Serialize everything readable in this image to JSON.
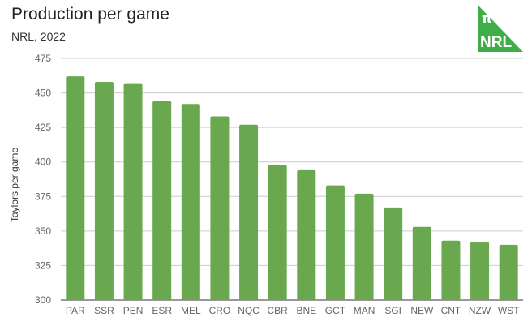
{
  "header": {
    "title": "Production per game",
    "subtitle": "NRL, 2022"
  },
  "logo": {
    "symbol": "π",
    "text": "NRL",
    "color": "#3fae49",
    "text_color": "#ffffff"
  },
  "colors": {
    "bar": "#6aa84f",
    "gridline": "#cccccc",
    "baseline": "#333333"
  },
  "chart_data": {
    "type": "bar",
    "title": "Production per game",
    "subtitle": "NRL, 2022",
    "xlabel": "",
    "ylabel": "Taylors per game",
    "ylim": [
      300,
      475
    ],
    "yticks": [
      300,
      325,
      350,
      375,
      400,
      425,
      450,
      475
    ],
    "grid": true,
    "legend": "none",
    "categories": [
      "PAR",
      "SSR",
      "PEN",
      "ESR",
      "MEL",
      "CRO",
      "NQC",
      "CBR",
      "BNE",
      "GCT",
      "MAN",
      "SGI",
      "NEW",
      "CNT",
      "NZW",
      "WST"
    ],
    "values": [
      462,
      458,
      457,
      444,
      442,
      433,
      427,
      398,
      394,
      383,
      377,
      367,
      353,
      343,
      342,
      340
    ]
  }
}
